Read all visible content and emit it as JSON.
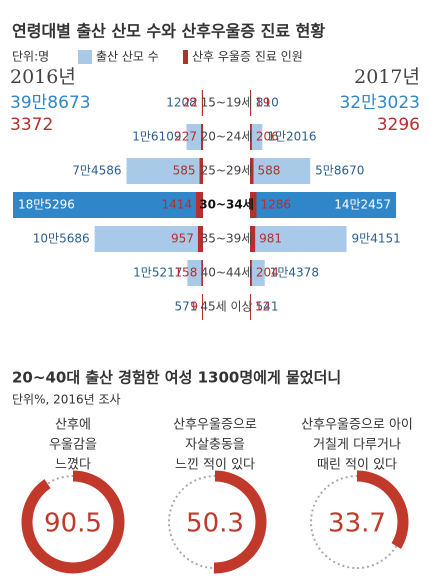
{
  "chart_data": [
    {
      "type": "butterfly",
      "title": "연령대별 출산 산모 수와 산후우울증 진료 현황",
      "unit": "단위:명",
      "categories": [
        "15~19세",
        "20~24세",
        "25~29세",
        "30~34세",
        "35~39세",
        "40~44세",
        "45세 이상"
      ],
      "highlight": 3,
      "series": [
        {
          "name": "출산 산모 수",
          "color": "#a9c9e8",
          "highlight_color": "#2f87c9"
        },
        {
          "name": "산후 우울증 진료 인원",
          "color": "#b3302c"
        }
      ],
      "panels": [
        {
          "year": "2016년",
          "totals": [
            {
              "value": 398673,
              "label": "39만8673"
            },
            3372
          ],
          "values": [
            [
              1208,
              16109,
              74586,
              185296,
              105686,
              15217,
              571
            ],
            [
              22,
              227,
              585,
              1414,
              957,
              158,
              9
            ]
          ],
          "value_labels": [
            "1208",
            "1만6109",
            "7만4586",
            "18만5296",
            "10만5686",
            "1만5217",
            "571"
          ]
        },
        {
          "year": "2017년",
          "totals": [
            {
              "value": 323023,
              "label": "32만3023"
            },
            3296
          ],
          "values": [
            [
              810,
              12016,
              58670,
              142457,
              94151,
              14378,
              541
            ],
            [
              19,
              206,
              588,
              1286,
              981,
              204,
              12
            ]
          ],
          "value_labels": [
            "810",
            "1만2016",
            "5만8670",
            "14만2457",
            "9만4151",
            "1만4378",
            "541"
          ]
        }
      ]
    },
    {
      "type": "donut",
      "title": "20~40대 출산 경험한 여성 1300명에게 물었더니",
      "subtitle": "단위%, 2016년 조사",
      "categories": [
        [
          "산후에",
          "우울감을",
          "느꼈다"
        ],
        [
          "산후우울증으로",
          "자살충동을",
          "느낀 적이 있다"
        ],
        [
          "산후우울증으로 아이",
          "거칠게 다루거나",
          "때린 적이 있다"
        ]
      ],
      "values": [
        90.5,
        50.3,
        33.7
      ],
      "ylim": [
        0,
        100
      ],
      "color": "#c0392b"
    }
  ]
}
